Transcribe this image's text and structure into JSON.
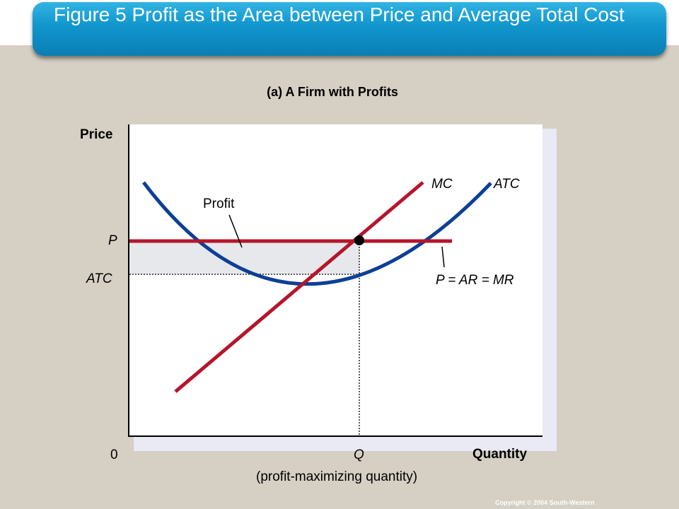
{
  "title": "Figure 5 Profit as the Area between Price and Average Total Cost",
  "subtitle": "(a) A Firm with Profits",
  "axes": {
    "y_label": "Price",
    "x_label": "Quantity",
    "origin": "0"
  },
  "levels": {
    "price": "P",
    "atc": "ATC",
    "quantity": "Q",
    "quantity_note": "(profit-maximizing quantity)"
  },
  "curves": {
    "mc": "MC",
    "atc": "ATC",
    "demand": "P = AR = MR"
  },
  "area_label": "Profit",
  "copyright": "Copyright © 2004  South-Western",
  "colors": {
    "title_bar": "#1095cc",
    "mc_line": "#b5152b",
    "atc_curve": "#0d3f96",
    "profit_area": "#e6e8ec"
  }
}
